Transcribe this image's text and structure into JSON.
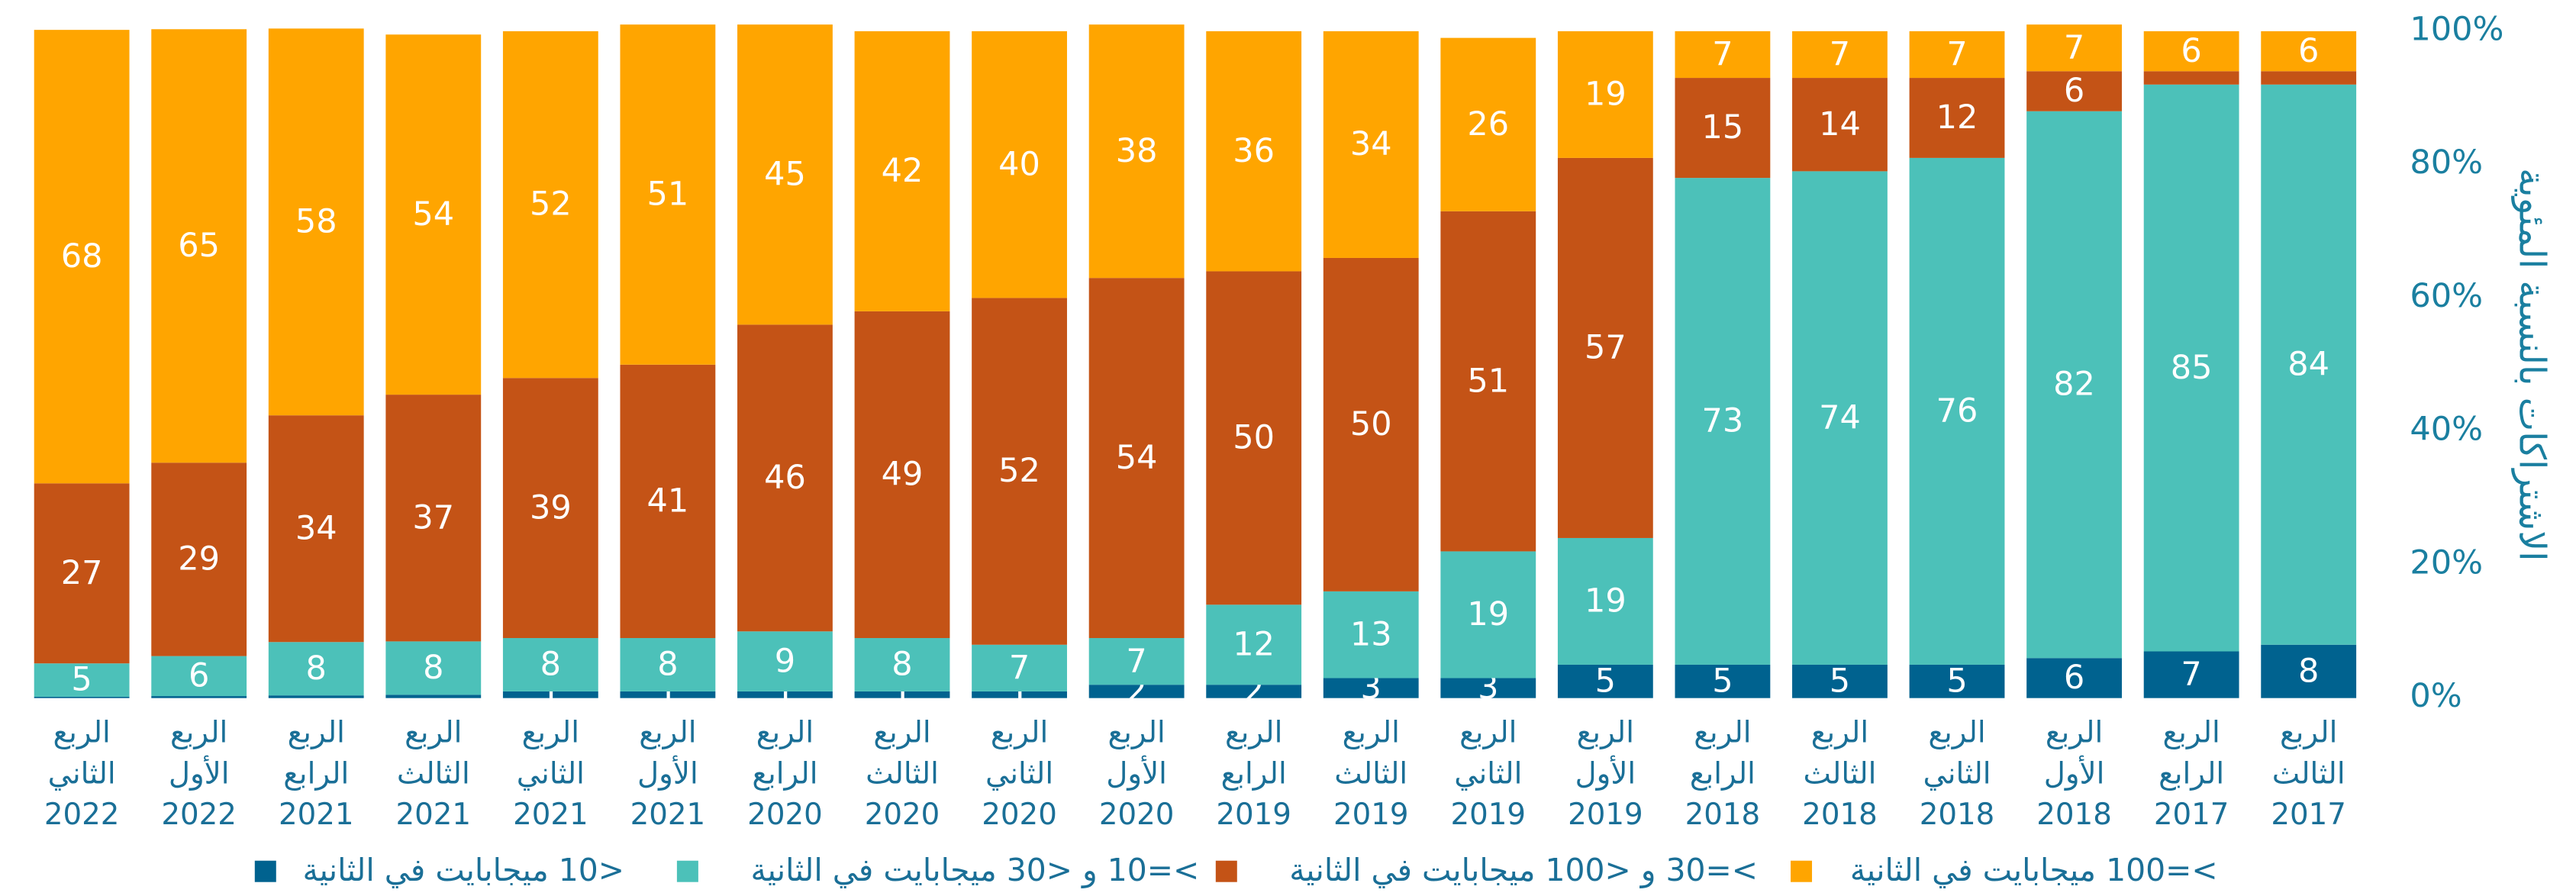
{
  "chart_data": {
    "type": "stacked_bar_percent",
    "y_label": "الاشتراكات بالنسبة المئوية",
    "categories": [
      [
        "الربع",
        "الثاني",
        "2022"
      ],
      [
        "الربع",
        "الأول",
        "2022"
      ],
      [
        "الربع",
        "الرابع",
        "2021"
      ],
      [
        "الربع",
        "الثالث",
        "2021"
      ],
      [
        "الربع",
        "الثاني",
        "2021"
      ],
      [
        "الربع",
        "الأول",
        "2021"
      ],
      [
        "الربع",
        "الرابع",
        "2020"
      ],
      [
        "الربع",
        "الثالث",
        "2020"
      ],
      [
        "الربع",
        "الثاني",
        "2020"
      ],
      [
        "الربع",
        "الأول",
        "2020"
      ],
      [
        "الربع",
        "الرابع",
        "2019"
      ],
      [
        "الربع",
        "الثالث",
        "2019"
      ],
      [
        "الربع",
        "الثاني",
        "2019"
      ],
      [
        "الربع",
        "الأول",
        "2019"
      ],
      [
        "الربع",
        "الرابع",
        "2018"
      ],
      [
        "الربع",
        "الثالث",
        "2018"
      ],
      [
        "الربع",
        "الثاني",
        "2018"
      ],
      [
        "الربع",
        "الأول",
        "2018"
      ],
      [
        "الربع",
        "الرابع",
        "2017"
      ],
      [
        "الربع",
        "الثالث",
        "2017"
      ]
    ],
    "series": [
      {
        "name": "<10 ميجابايت في الثانية",
        "color": "#00628f",
        "values": [
          0.2,
          0.3,
          0.4,
          0.5,
          1,
          1,
          1,
          1,
          1,
          2,
          2,
          3,
          3,
          5,
          5,
          5,
          5,
          6,
          7,
          8
        ],
        "value_labels": [
          null,
          null,
          null,
          null,
          "1",
          "1",
          "1",
          "1",
          "1",
          "2",
          "2",
          "3",
          "3",
          "5",
          "5",
          "5",
          "5",
          "6",
          "7",
          "8"
        ]
      },
      {
        "name": ">=10 و <30 ميجابايت في الثانية",
        "color": "#4cc1b9",
        "values": [
          5,
          6,
          8,
          8,
          8,
          8,
          9,
          8,
          7,
          7,
          12,
          13,
          19,
          19,
          73,
          74,
          76,
          82,
          85,
          84
        ]
      },
      {
        "name": ">=30 و <100 ميجابايت في الثانية",
        "color": "#c45316",
        "values": [
          27,
          29,
          34,
          37,
          39,
          41,
          46,
          49,
          52,
          54,
          50,
          50,
          51,
          57,
          15,
          14,
          12,
          6,
          2,
          2
        ],
        "value_labels": [
          "27",
          "29",
          "34",
          "37",
          "39",
          "41",
          "46",
          "49",
          "52",
          "54",
          "50",
          "50",
          "51",
          "57",
          "15",
          "14",
          "12",
          "6",
          null,
          null
        ]
      },
      {
        "name": ">=100 ميجابايت في الثانية",
        "color": "#ffa500",
        "values": [
          68,
          65,
          58,
          54,
          52,
          51,
          45,
          42,
          40,
          38,
          36,
          34,
          26,
          19,
          7,
          7,
          7,
          7,
          6,
          6
        ]
      }
    ],
    "ylim": [
      0,
      100
    ],
    "yticks": [
      {
        "value": 0,
        "label": "0%"
      },
      {
        "value": 20,
        "label": "20%"
      },
      {
        "value": 40,
        "label": "40%"
      },
      {
        "value": 60,
        "label": "60%"
      },
      {
        "value": 80,
        "label": "80%"
      },
      {
        "value": 100,
        "label": "100%"
      }
    ],
    "legend": "bottom"
  }
}
